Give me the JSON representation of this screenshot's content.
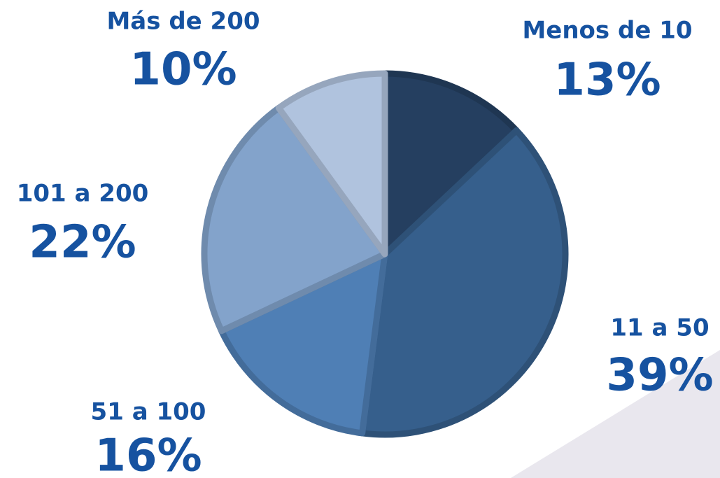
{
  "chart_data": {
    "type": "pie",
    "categories": [
      "Menos de 10",
      "11 a 50",
      "51 a 100",
      "101 a 200",
      "Más de 200"
    ],
    "values": [
      13,
      39,
      16,
      22,
      10
    ],
    "value_labels": [
      "13%",
      "39%",
      "16%",
      "22%",
      "10%"
    ],
    "colors": [
      "#253f60",
      "#365f8c",
      "#4f7fb5",
      "#83a3cb",
      "#b0c3de"
    ]
  }
}
